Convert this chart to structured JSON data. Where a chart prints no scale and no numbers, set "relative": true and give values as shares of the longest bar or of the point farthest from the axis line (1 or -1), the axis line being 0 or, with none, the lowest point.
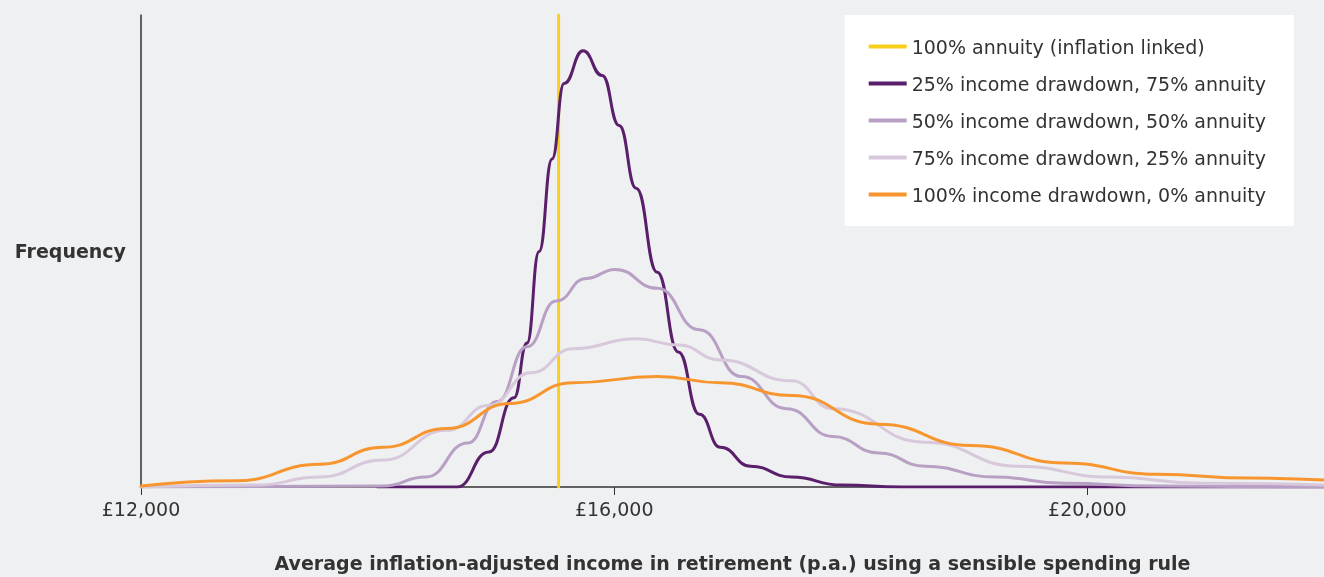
{
  "chart_data": {
    "type": "line",
    "xlabel": "Average inflation-adjusted income in retirement (p.a.) using a sensible spending rule",
    "ylabel": "Frequency",
    "relative": true,
    "tick_labels": "x",
    "legend": "top right",
    "marker": "none",
    "line_style": "solid",
    "xlim": [
      12000,
      22000
    ],
    "xticks": [
      {
        "value": 12000,
        "label": "£12,000"
      },
      {
        "value": 16000,
        "label": "£16,000"
      },
      {
        "value": 20000,
        "label": "£20,000"
      }
    ],
    "series": [
      {
        "name": "100% annuity (inflation linked)",
        "color": "#f9cf1d",
        "x": [
          15530,
          15530
        ],
        "values": [
          0,
          1
        ]
      },
      {
        "name": "25% income drawdown, 75% annuity",
        "color": "#5a1f6a",
        "x": [
          14000,
          14670,
          14941,
          15153,
          15263,
          15365,
          15475,
          15576,
          15737,
          15898,
          16042,
          16186,
          16364,
          16542,
          16720,
          16898,
          17153,
          17500,
          17924,
          18430,
          22000
        ],
        "values": [
          0,
          0,
          0.074,
          0.189,
          0.305,
          0.499,
          0.695,
          0.855,
          0.924,
          0.872,
          0.766,
          0.633,
          0.455,
          0.286,
          0.154,
          0.084,
          0.044,
          0.021,
          0.004,
          0,
          0
        ]
      },
      {
        "name": "50% income drawdown, 50% annuity",
        "color": "#b8a0c4",
        "x": [
          12000,
          14042,
          14407,
          14763,
          15009,
          15263,
          15509,
          15763,
          16009,
          16364,
          16720,
          17076,
          17458,
          17847,
          18237,
          18627,
          19220,
          19805,
          20585,
          22000
        ],
        "values": [
          0,
          0.002,
          0.021,
          0.093,
          0.181,
          0.297,
          0.394,
          0.442,
          0.461,
          0.421,
          0.333,
          0.234,
          0.166,
          0.107,
          0.072,
          0.044,
          0.021,
          0.008,
          0.002,
          0
        ]
      },
      {
        "name": "75% income drawdown, 25% annuity",
        "color": "#d8c8dc",
        "x": [
          12000,
          12975,
          13508,
          14042,
          14585,
          14941,
          15297,
          15653,
          16186,
          16542,
          16898,
          17500,
          17847,
          18627,
          19415,
          20195,
          20975,
          22000
        ],
        "values": [
          0,
          0.004,
          0.021,
          0.057,
          0.12,
          0.173,
          0.242,
          0.293,
          0.314,
          0.301,
          0.269,
          0.225,
          0.166,
          0.095,
          0.044,
          0.021,
          0.008,
          0.004
        ]
      },
      {
        "name": "100% income drawdown, 0% annuity",
        "color": "#f7962e",
        "x": [
          12000,
          12797,
          13508,
          14042,
          14585,
          15119,
          15653,
          16364,
          16898,
          17500,
          18237,
          19017,
          19805,
          20585,
          21373,
          22000
        ],
        "values": [
          0.002,
          0.013,
          0.048,
          0.084,
          0.124,
          0.177,
          0.221,
          0.234,
          0.221,
          0.194,
          0.133,
          0.088,
          0.051,
          0.027,
          0.019,
          0.015
        ]
      }
    ]
  }
}
